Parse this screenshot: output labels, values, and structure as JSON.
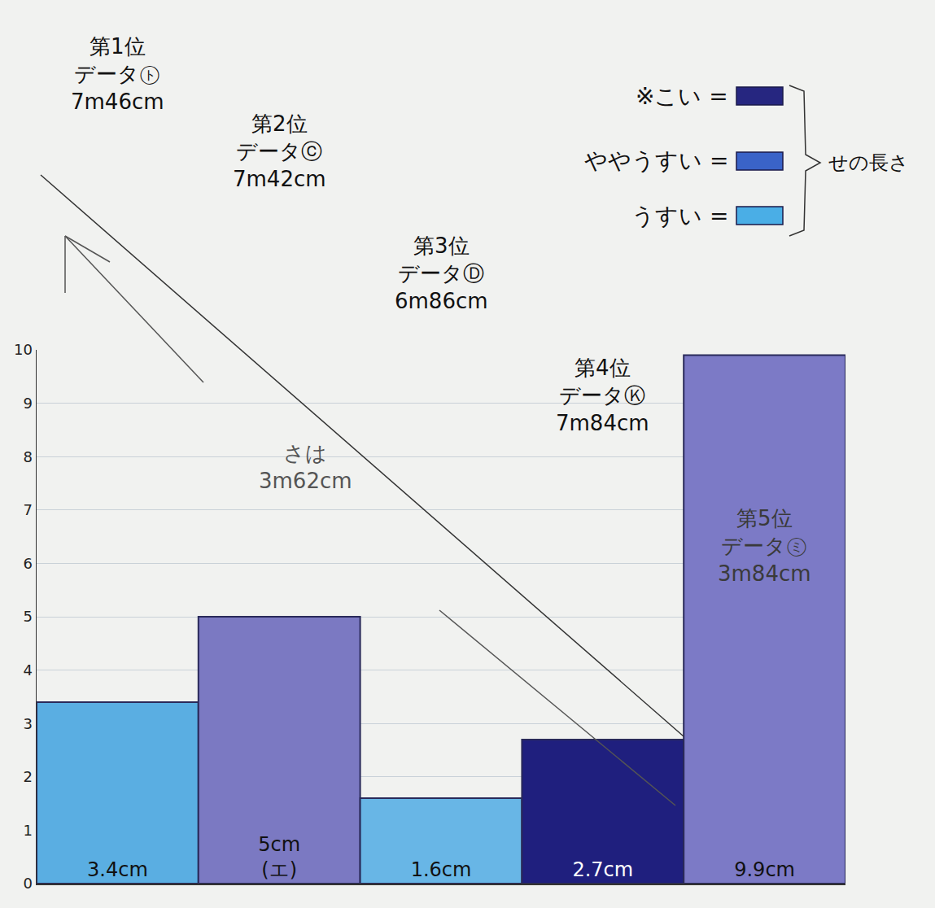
{
  "chart_data": {
    "type": "bar",
    "categories": [
      "第1位",
      "第2位",
      "第3位",
      "第4位",
      "第5位"
    ],
    "data_names": [
      "データ㋣",
      "データⓒ",
      "データⒹ",
      "データⓀ",
      "データ㋯"
    ],
    "distances": [
      "7m46cm",
      "7m42cm",
      "6m86cm",
      "7m84cm",
      "3m84cm"
    ],
    "values": [
      3.4,
      5,
      1.6,
      2.7,
      9.9
    ],
    "value_labels": [
      "3.4cm",
      "5cm (エ)",
      "1.6cm",
      "2.7cm",
      "9.9cm"
    ],
    "data_labels": true,
    "colors": [
      "#5aaee2",
      "#7b79c2",
      "#68b6e6",
      "#1f1f7e",
      "#7c7ac6"
    ],
    "ylim": [
      0,
      10
    ],
    "yticks": [
      0,
      1,
      2,
      3,
      4,
      5,
      6,
      7,
      8,
      9,
      10
    ],
    "grid": true,
    "tick_labels": "y",
    "annotations": [
      "さは",
      "3m62cm"
    ],
    "color_key": {
      "items": [
        {
          "label": "※こい =",
          "color": "#262680"
        },
        {
          "label": "ややうすい =",
          "color": "#3a63c8"
        },
        {
          "label": "うすい =",
          "color": "#4aaee6"
        }
      ],
      "title": "せの長さ"
    }
  }
}
